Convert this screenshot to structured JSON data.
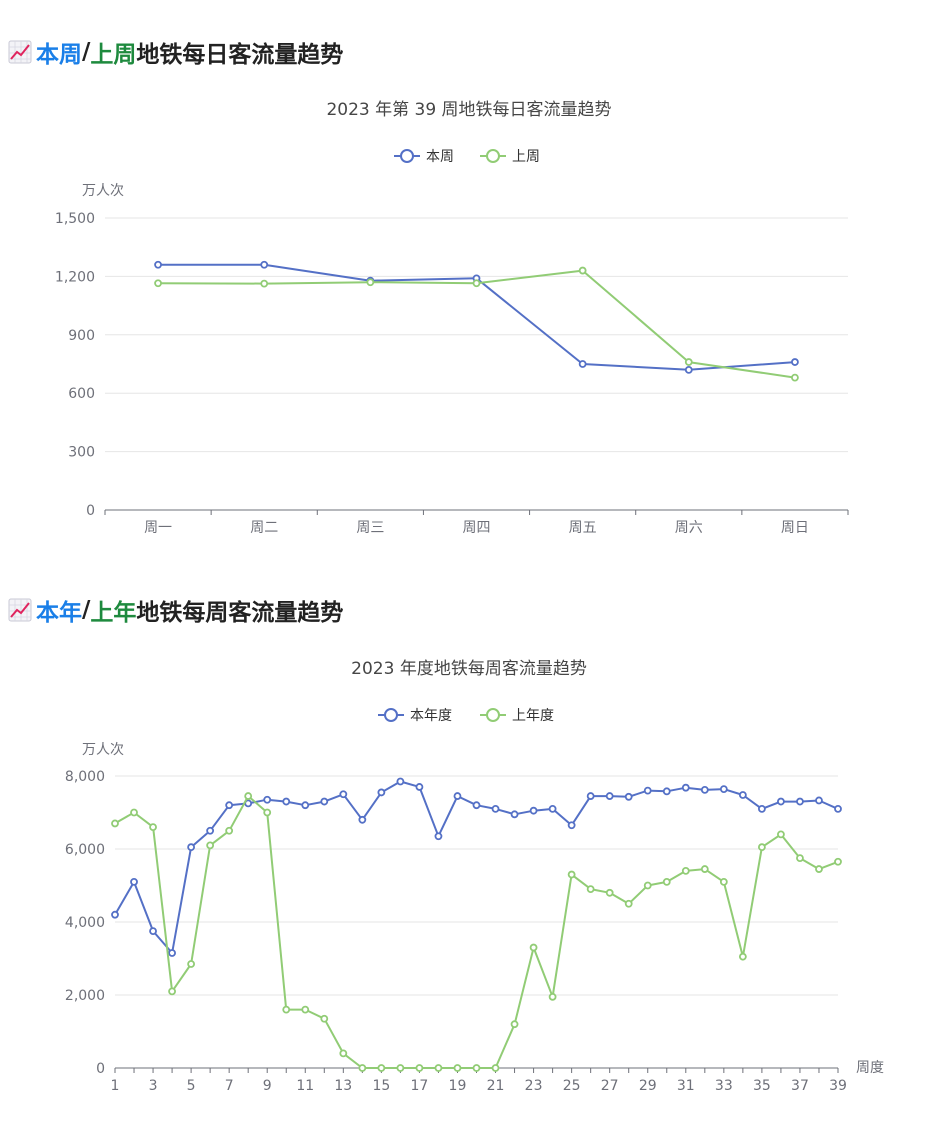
{
  "colors": {
    "this_series": "#5470c6",
    "last_series": "#91cc75",
    "title_blue": "#1a7fe8",
    "title_green": "#1e8a3e",
    "title_dark": "#222222",
    "axis": "#6e7079",
    "grid": "#e6e6e6"
  },
  "icons": {
    "section": "chart-increasing-icon"
  },
  "sections": [
    {
      "title_part1": "本周",
      "title_sep": "/",
      "title_part2": "上周",
      "title_rest": "地铁每日客流量趋势"
    },
    {
      "title_part1": "本年",
      "title_sep": "/",
      "title_part2": "上年",
      "title_rest": "地铁每周客流量趋势"
    }
  ],
  "chart_data": [
    {
      "type": "line",
      "title": "2023 年第 39 周地铁每日客流量趋势",
      "ylabel": "万人次",
      "xlabel": "",
      "ylim": [
        0,
        1500
      ],
      "yticks": [
        "0",
        "300",
        "600",
        "900",
        "1,200",
        "1,500"
      ],
      "categories": [
        "周一",
        "周二",
        "周三",
        "周四",
        "周五",
        "周六",
        "周日"
      ],
      "legend_position": "top-center",
      "grid": true,
      "series": [
        {
          "name": "本周",
          "values": [
            1260,
            1260,
            1178,
            1190,
            750,
            720,
            760
          ]
        },
        {
          "name": "上周",
          "values": [
            1165,
            1163,
            1170,
            1165,
            1230,
            760,
            680
          ]
        }
      ]
    },
    {
      "type": "line",
      "title": "2023 年度地铁每周客流量趋势",
      "ylabel": "万人次",
      "xlabel": "周度",
      "ylim": [
        0,
        8000
      ],
      "yticks": [
        "0",
        "2,000",
        "4,000",
        "6,000",
        "8,000"
      ],
      "xticks": [
        "1",
        "3",
        "5",
        "7",
        "9",
        "11",
        "13",
        "15",
        "17",
        "19",
        "21",
        "23",
        "25",
        "27",
        "29",
        "31",
        "33",
        "35",
        "37",
        "39"
      ],
      "categories": [
        1,
        2,
        3,
        4,
        5,
        6,
        7,
        8,
        9,
        10,
        11,
        12,
        13,
        14,
        15,
        16,
        17,
        18,
        19,
        20,
        21,
        22,
        23,
        24,
        25,
        26,
        27,
        28,
        29,
        30,
        31,
        32,
        33,
        34,
        35,
        36,
        37,
        38,
        39
      ],
      "legend_position": "top-center",
      "grid": true,
      "series": [
        {
          "name": "本年度",
          "values": [
            4200,
            5100,
            3750,
            3150,
            6050,
            6500,
            7200,
            7250,
            7350,
            7300,
            7200,
            7300,
            7500,
            6800,
            7550,
            7850,
            7700,
            6350,
            7450,
            7200,
            7100,
            6950,
            7050,
            7100,
            6650,
            7450,
            7450,
            7430,
            7600,
            7580,
            7680,
            7620,
            7640,
            7480,
            7100,
            7300,
            7300,
            7330,
            7100
          ]
        },
        {
          "name": "上年度",
          "values": [
            6700,
            7000,
            6600,
            2100,
            2850,
            6100,
            6500,
            7450,
            7000,
            1600,
            1600,
            1350,
            400,
            0,
            0,
            0,
            0,
            0,
            0,
            0,
            0,
            1200,
            3300,
            1950,
            5300,
            4900,
            4800,
            4500,
            5000,
            5100,
            5400,
            5450,
            5100,
            3050,
            6050,
            6400,
            5750,
            5450,
            5650
          ]
        }
      ]
    }
  ]
}
